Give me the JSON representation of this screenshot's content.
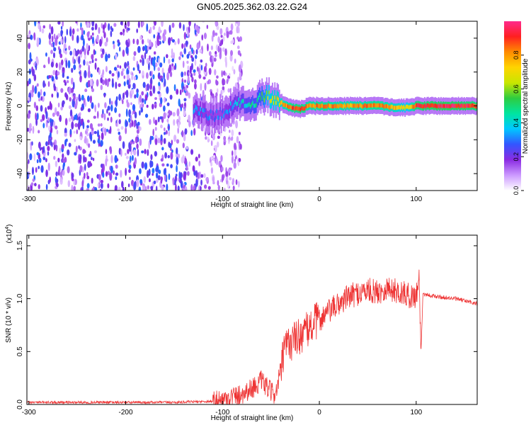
{
  "title": "GN05.2025.362.03.22.G24",
  "chart_data": [
    {
      "type": "heatmap",
      "xlabel": "Height of straight line (km)",
      "ylabel": "Frequency (Hz)",
      "xlim": [
        -302,
        163
      ],
      "ylim": [
        -50,
        50
      ],
      "xticks": [
        -300,
        -200,
        -100,
        0,
        100
      ],
      "yticks": [
        -40,
        -20,
        0,
        20,
        40
      ],
      "colorbar": {
        "label": "Normalized spectral amplitude",
        "range": [
          0,
          1
        ],
        "ticks": [
          "0.0",
          "0.2",
          "0.4",
          "0.6",
          "0.8"
        ],
        "colormap": [
          "#ffffff",
          "#cc99ff",
          "#8a2be2",
          "#3355ff",
          "#00c8ff",
          "#00e5a0",
          "#2ecc40",
          "#c8e600",
          "#ffd400",
          "#ff8c00",
          "#ff2020",
          "#ff2a8c"
        ]
      },
      "ridge": {
        "x": [
          -130,
          -110,
          -100,
          -90,
          -80,
          -70,
          -60,
          -55,
          -50,
          -40,
          -30,
          -20,
          -10,
          0,
          20,
          40,
          60,
          80,
          90,
          100,
          130,
          163
        ],
        "freq": [
          -3,
          -6,
          -4,
          -1,
          2,
          1,
          5,
          7,
          5,
          2,
          -1,
          -2,
          0,
          0,
          0,
          0,
          0,
          -1,
          -1,
          0,
          0,
          0
        ],
        "amplitude": [
          0.35,
          0.3,
          0.3,
          0.35,
          0.4,
          0.45,
          0.5,
          0.6,
          0.7,
          0.75,
          0.85,
          0.9,
          0.8,
          0.85,
          0.8,
          0.8,
          0.85,
          0.75,
          0.65,
          0.9,
          0.95,
          0.9
        ]
      },
      "noise_region": {
        "x": [
          -302,
          -95
        ],
        "freq": [
          -50,
          50
        ],
        "amplitude": [
          0.05,
          0.3
        ]
      }
    },
    {
      "type": "line",
      "xlabel": "Height of straight line (km)",
      "ylabel": "SNR (10 * v/v)",
      "yscale_label": "(x10",
      "yscale_exp": "4",
      "yscale_close": ")",
      "xlim": [
        -302,
        163
      ],
      "ylim": [
        0.0,
        1.6
      ],
      "xticks": [
        -300,
        -200,
        -100,
        0,
        100
      ],
      "yticks": [
        "0.0",
        "0.5",
        "1.0",
        "1.5"
      ],
      "line_color": "#ee3333",
      "series": [
        {
          "x": [
            -302,
            -250,
            -200,
            -150,
            -110,
            -100,
            -90,
            -80,
            -70,
            -60,
            -50,
            -45,
            -40,
            -35,
            -30,
            -25,
            -20,
            -15,
            -10,
            -5,
            0,
            10,
            20,
            30,
            40,
            50,
            60,
            70,
            80,
            90,
            95,
            100,
            103,
            105,
            107,
            110,
            120,
            130,
            140,
            150,
            163
          ],
          "y": [
            0.02,
            0.02,
            0.02,
            0.02,
            0.03,
            0.04,
            0.07,
            0.1,
            0.15,
            0.22,
            0.12,
            0.1,
            0.32,
            0.55,
            0.58,
            0.62,
            0.65,
            0.68,
            0.72,
            0.78,
            0.8,
            0.88,
            0.95,
            1.02,
            1.05,
            1.08,
            1.06,
            1.1,
            1.07,
            1.04,
            1.02,
            1.03,
            1.2,
            0.5,
            1.05,
            1.04,
            1.02,
            1.01,
            1.0,
            0.98,
            0.95
          ]
        }
      ]
    }
  ]
}
